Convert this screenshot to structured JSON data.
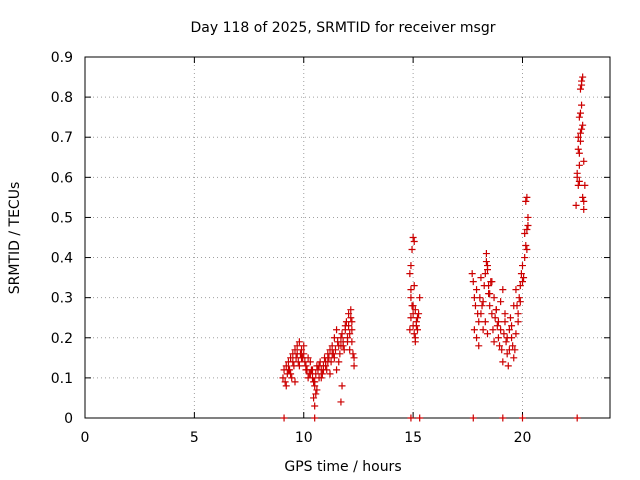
{
  "chart_data": {
    "type": "scatter",
    "title": "Day 118 of 2025, SRMTID for receiver msgr",
    "xlabel": "GPS time / hours",
    "ylabel": "SRMTID / TECUs",
    "xlim": [
      0,
      24
    ],
    "ylim": [
      0,
      0.9
    ],
    "xticks": [
      0,
      5,
      10,
      15,
      20
    ],
    "xtick_labels": [
      "0",
      "5",
      "10",
      "15",
      "20"
    ],
    "yticks": [
      0,
      0.1,
      0.2,
      0.3,
      0.4,
      0.5,
      0.6,
      0.7,
      0.8,
      0.9
    ],
    "ytick_labels": [
      "0",
      "0.1",
      "0.2",
      "0.3",
      "0.4",
      "0.5",
      "0.6",
      "0.7",
      "0.8",
      "0.9"
    ],
    "grid": true,
    "marker": "+",
    "color": "#cc0000",
    "series": [
      {
        "x": [
          9.05,
          9.1,
          9.15,
          9.2,
          9.25,
          9.3,
          9.35,
          9.4,
          9.45,
          9.5,
          9.55,
          9.6,
          9.65,
          9.7,
          9.75,
          9.8,
          9.85,
          9.9,
          9.95,
          10.0,
          10.05,
          10.1,
          10.15,
          10.2,
          10.25,
          10.3,
          10.35,
          10.4,
          10.45,
          10.5,
          10.55,
          10.6,
          10.65,
          10.7,
          10.75,
          10.8,
          10.85,
          10.9,
          10.95,
          11.0,
          11.05,
          11.1,
          11.15,
          11.2,
          11.25,
          11.3,
          11.35,
          11.4,
          11.45,
          11.5,
          11.55,
          11.6,
          11.65,
          11.7,
          11.75,
          11.8,
          11.85,
          11.9,
          11.95,
          12.0,
          12.05,
          12.1,
          12.15,
          12.2,
          12.25,
          12.3,
          9.2,
          9.4,
          9.6,
          9.8,
          10.0,
          10.2,
          10.4,
          10.6,
          10.8,
          11.0,
          11.2,
          11.4,
          11.6,
          11.8,
          12.0,
          12.2,
          9.3,
          9.5,
          9.7,
          9.9,
          10.1,
          10.3,
          10.5,
          10.7,
          10.9,
          11.1,
          11.3,
          11.5,
          11.7,
          11.9,
          12.1,
          12.3,
          10.45,
          10.5,
          10.55,
          11.7,
          11.75,
          12.05,
          12.15,
          12.2
        ],
        "y": [
          0.1,
          0.12,
          0.09,
          0.13,
          0.11,
          0.14,
          0.12,
          0.15,
          0.1,
          0.16,
          0.13,
          0.17,
          0.15,
          0.18,
          0.14,
          0.19,
          0.16,
          0.17,
          0.15,
          0.18,
          0.14,
          0.13,
          0.12,
          0.15,
          0.11,
          0.14,
          0.12,
          0.1,
          0.09,
          0.08,
          0.11,
          0.13,
          0.12,
          0.1,
          0.14,
          0.12,
          0.11,
          0.13,
          0.15,
          0.14,
          0.12,
          0.16,
          0.15,
          0.17,
          0.14,
          0.18,
          0.16,
          0.2,
          0.17,
          0.22,
          0.19,
          0.18,
          0.16,
          0.2,
          0.21,
          0.19,
          0.17,
          0.22,
          0.24,
          0.2,
          0.23,
          0.21,
          0.25,
          0.19,
          0.16,
          0.15,
          0.08,
          0.11,
          0.09,
          0.13,
          0.16,
          0.1,
          0.12,
          0.07,
          0.1,
          0.13,
          0.11,
          0.15,
          0.14,
          0.18,
          0.19,
          0.22,
          0.12,
          0.14,
          0.16,
          0.15,
          0.12,
          0.11,
          0.09,
          0.13,
          0.12,
          0.14,
          0.16,
          0.12,
          0.18,
          0.23,
          0.17,
          0.13,
          0.05,
          0.03,
          0.06,
          0.04,
          0.08,
          0.26,
          0.27,
          0.24
        ]
      },
      {
        "x": [
          14.85,
          14.9,
          14.9,
          14.95,
          15.0,
          15.0,
          15.05,
          15.1,
          15.1,
          15.15,
          15.2,
          15.25,
          15.3,
          14.85,
          14.9,
          14.95,
          15.0,
          15.05,
          15.1,
          15.15,
          15.2,
          14.9,
          15.0,
          15.05
        ],
        "y": [
          0.22,
          0.25,
          0.3,
          0.28,
          0.23,
          0.45,
          0.44,
          0.27,
          0.2,
          0.24,
          0.22,
          0.26,
          0.3,
          0.36,
          0.38,
          0.42,
          0.26,
          0.21,
          0.19,
          0.23,
          0.25,
          0.32,
          0.28,
          0.33
        ]
      },
      {
        "x": [
          17.7,
          17.75,
          17.8,
          17.85,
          17.9,
          17.95,
          18.0,
          18.05,
          18.1,
          18.15,
          18.2,
          18.25,
          18.3,
          18.35,
          18.4,
          18.45,
          18.5,
          18.55,
          18.6,
          18.65,
          18.7,
          18.75,
          18.8,
          18.85,
          18.9,
          18.95,
          19.0,
          19.05,
          19.1,
          19.15,
          19.2,
          19.25,
          19.3,
          19.35,
          19.4,
          19.45,
          19.5,
          19.55,
          19.6,
          19.65,
          19.7,
          19.75,
          19.8,
          19.85,
          19.9,
          19.95,
          20.0,
          20.05,
          20.1,
          20.15,
          20.2,
          20.25,
          17.8,
          17.9,
          18.0,
          18.1,
          18.2,
          18.3,
          18.4,
          18.5,
          18.6,
          18.7,
          18.8,
          18.9,
          19.0,
          19.1,
          19.2,
          19.3,
          19.4,
          19.5,
          19.6,
          19.7,
          19.8,
          19.9,
          20.0,
          20.1,
          20.2,
          18.35,
          18.4,
          18.45,
          20.15,
          20.2,
          20.25
        ],
        "y": [
          0.36,
          0.34,
          0.3,
          0.28,
          0.32,
          0.26,
          0.24,
          0.3,
          0.35,
          0.28,
          0.22,
          0.33,
          0.36,
          0.39,
          0.37,
          0.31,
          0.28,
          0.34,
          0.26,
          0.22,
          0.19,
          0.25,
          0.27,
          0.23,
          0.2,
          0.18,
          0.22,
          0.17,
          0.14,
          0.21,
          0.24,
          0.19,
          0.16,
          0.13,
          0.22,
          0.25,
          0.2,
          0.18,
          0.15,
          0.17,
          0.21,
          0.28,
          0.26,
          0.3,
          0.33,
          0.36,
          0.38,
          0.35,
          0.4,
          0.43,
          0.47,
          0.5,
          0.22,
          0.2,
          0.18,
          0.26,
          0.29,
          0.24,
          0.21,
          0.31,
          0.34,
          0.3,
          0.27,
          0.24,
          0.29,
          0.32,
          0.26,
          0.2,
          0.17,
          0.23,
          0.28,
          0.32,
          0.24,
          0.29,
          0.34,
          0.46,
          0.42,
          0.41,
          0.38,
          0.33,
          0.54,
          0.55,
          0.48
        ]
      },
      {
        "x": [
          22.45,
          22.5,
          22.55,
          22.55,
          22.6,
          22.6,
          22.65,
          22.65,
          22.7,
          22.7,
          22.75,
          22.75,
          22.8,
          22.8,
          22.85,
          22.5,
          22.55,
          22.6,
          22.65,
          22.7,
          22.75,
          22.8,
          22.6,
          22.65,
          22.7
        ],
        "y": [
          0.53,
          0.6,
          0.58,
          0.67,
          0.63,
          0.75,
          0.71,
          0.82,
          0.78,
          0.84,
          0.55,
          0.73,
          0.52,
          0.64,
          0.58,
          0.61,
          0.7,
          0.66,
          0.76,
          0.83,
          0.85,
          0.54,
          0.59,
          0.69,
          0.72
        ]
      },
      {
        "x": [
          9.1,
          10.5,
          14.9,
          15.3,
          17.75,
          19.1,
          20.0,
          22.5
        ],
        "y": [
          0,
          0,
          0,
          0,
          0,
          0,
          0,
          0
        ]
      }
    ]
  }
}
